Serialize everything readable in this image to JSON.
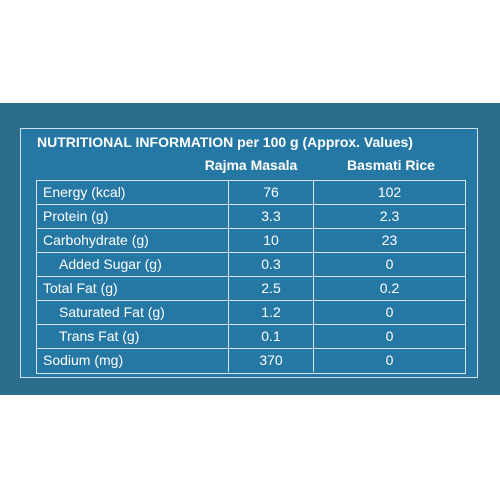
{
  "table": {
    "title": "NUTRITIONAL INFORMATION per 100 g (Approx. Values)",
    "columns": [
      "Rajma Masala",
      "Basmati Rice"
    ],
    "rows": [
      {
        "label": "Energy (kcal)",
        "rajma": "76",
        "rice": "102",
        "indent": false
      },
      {
        "label": "Protein (g)",
        "rajma": "3.3",
        "rice": "2.3",
        "indent": false
      },
      {
        "label": "Carbohydrate (g)",
        "rajma": "10",
        "rice": "23",
        "indent": false
      },
      {
        "label": "Added Sugar (g)",
        "rajma": "0.3",
        "rice": "0",
        "indent": true
      },
      {
        "label": "Total Fat (g)",
        "rajma": "2.5",
        "rice": "0.2",
        "indent": false
      },
      {
        "label": "Saturated Fat (g)",
        "rajma": "1.2",
        "rice": "0",
        "indent": true
      },
      {
        "label": "Trans Fat (g)",
        "rajma": "0.1",
        "rice": "0",
        "indent": true
      },
      {
        "label": "Sodium (mg)",
        "rajma": "370",
        "rice": "0",
        "indent": false
      }
    ]
  },
  "colors": {
    "panel": "#2c6c8c",
    "card": "#2678a4",
    "text": "#ffffff",
    "lines": "#d7e7f0"
  }
}
